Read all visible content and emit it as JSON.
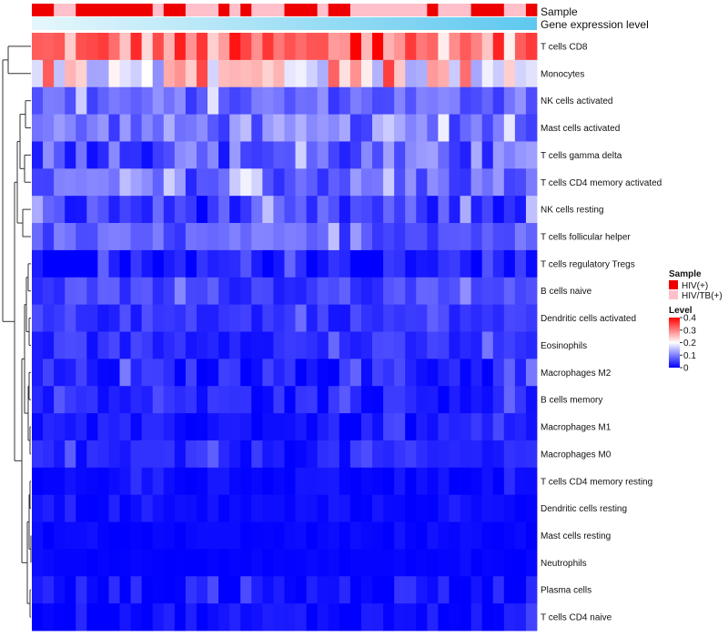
{
  "chart_data": {
    "type": "heatmap",
    "title": "",
    "annotation_tracks": {
      "sample_label": "Sample",
      "gene_expression_label": "Gene expression level"
    },
    "rows": [
      "T cells CD8",
      "Monocytes",
      "NK cells activated",
      "Mast cells activated",
      "T cells gamma delta",
      "T cells CD4 memory activated",
      "NK cells resting",
      "T cells follicular helper",
      "T cells regulatory  Tregs",
      "B cells naive",
      "Dendritic cells activated",
      "Eosinophils",
      "Macrophages M2",
      "B cells memory",
      "Macrophages M1",
      "Macrophages M0",
      "T cells CD4 memory resting",
      "Dendritic cells resting",
      "Mast cells resting",
      "Neutrophils",
      "Plasma cells",
      "T cells CD4 naive"
    ],
    "n_columns": 46,
    "sample_groups": [
      "HIV(+)",
      "HIV(+)",
      "HIV/TB(+)",
      "HIV/TB(+)",
      "HIV(+)",
      "HIV(+)",
      "HIV(+)",
      "HIV(+)",
      "HIV(+)",
      "HIV(+)",
      "HIV(+)",
      "HIV/TB(+)",
      "HIV(+)",
      "HIV(+)",
      "HIV/TB(+)",
      "HIV/TB(+)",
      "HIV/TB(+)",
      "HIV(+)",
      "HIV/TB(+)",
      "HIV(+)",
      "HIV/TB(+)",
      "HIV/TB(+)",
      "HIV/TB(+)",
      "HIV(+)",
      "HIV(+)",
      "HIV(+)",
      "HIV/TB(+)",
      "HIV(+)",
      "HIV(+)",
      "HIV/TB(+)",
      "HIV/TB(+)",
      "HIV/TB(+)",
      "HIV/TB(+)",
      "HIV/TB(+)",
      "HIV/TB(+)",
      "HIV/TB(+)",
      "HIV(+)",
      "HIV/TB(+)",
      "HIV/TB(+)",
      "HIV/TB(+)",
      "HIV(+)",
      "HIV(+)",
      "HIV(+)",
      "HIV/TB(+)",
      "HIV/TB(+)",
      "HIV(+)"
    ],
    "color_scale": {
      "title": "Level",
      "ticks": [
        "0.4",
        "0.3",
        "0.2",
        "0.1",
        "0"
      ],
      "min": 0,
      "max": 0.4,
      "low_color": "#0000ff",
      "mid_color": "#ffffff",
      "high_color": "#ff0000"
    },
    "sample_legend": {
      "title": "Sample",
      "entries": [
        {
          "label": "HIV(+)",
          "color": "#ee0000"
        },
        {
          "label": "HIV/TB(+)",
          "color": "#ffc0cb"
        }
      ]
    },
    "gradient_colors": {
      "start": "#e6f7fc",
      "end": "#5ec8ef"
    },
    "row_base_levels": [
      0.3,
      0.22,
      0.08,
      0.09,
      0.07,
      0.08,
      0.045,
      0.07,
      0.02,
      0.05,
      0.04,
      0.035,
      0.025,
      0.025,
      0.015,
      0.025,
      0.008,
      0.008,
      0.004,
      0.003,
      0.012,
      0.012
    ],
    "row_noise": [
      0.09,
      0.11,
      0.04,
      0.05,
      0.06,
      0.05,
      0.045,
      0.035,
      0.03,
      0.03,
      0.025,
      0.025,
      0.03,
      0.025,
      0.02,
      0.025,
      0.012,
      0.01,
      0.006,
      0.004,
      0.03,
      0.02
    ]
  }
}
